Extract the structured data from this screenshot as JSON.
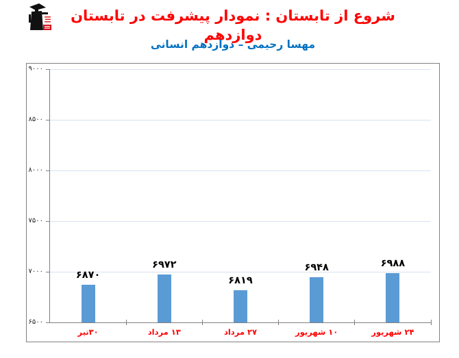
{
  "header": {
    "title": "شروع از تابستان : نمودار پیشرفت در تابستان دوازدهم",
    "subtitle": "مهسا رحیمی – دوازدهم انسانی",
    "title_color": "#FE0000",
    "subtitle_color": "#0070C0",
    "logo": "kanoon-ghalamchi-graduate-logo"
  },
  "chart_data": {
    "type": "bar",
    "title": "",
    "xlabel": "",
    "ylabel": "",
    "categories": [
      "۳۰تیر",
      "۱۳ مرداد",
      "۲۷ مرداد",
      "۱۰ شهریور",
      "۲۴ شهریور"
    ],
    "values": [
      6870,
      6972,
      6819,
      6948,
      6988
    ],
    "value_labels": [
      "۶۸۷۰",
      "۶۹۷۲",
      "۶۸۱۹",
      "۶۹۴۸",
      "۶۹۸۸"
    ],
    "ylim": [
      6500,
      9000
    ],
    "y_ticks": [
      {
        "value": 6500,
        "label": "۶۵۰۰"
      },
      {
        "value": 7000,
        "label": "۷۰۰۰"
      },
      {
        "value": 7500,
        "label": "۷۵۰۰"
      },
      {
        "value": 8000,
        "label": "۸۰۰۰"
      },
      {
        "value": 8500,
        "label": "۸۵۰۰"
      },
      {
        "value": 9000,
        "label": "۹۰۰۰"
      }
    ],
    "grid": true,
    "legend": "none",
    "colors": {
      "bar": "#5B9BD5",
      "gridline": "#D6E2F0",
      "axis": "#7F7F7F",
      "frame_border": "#808080",
      "category_label": "#FE0000",
      "value_label": "#000000",
      "tick_label": "#262626"
    }
  }
}
